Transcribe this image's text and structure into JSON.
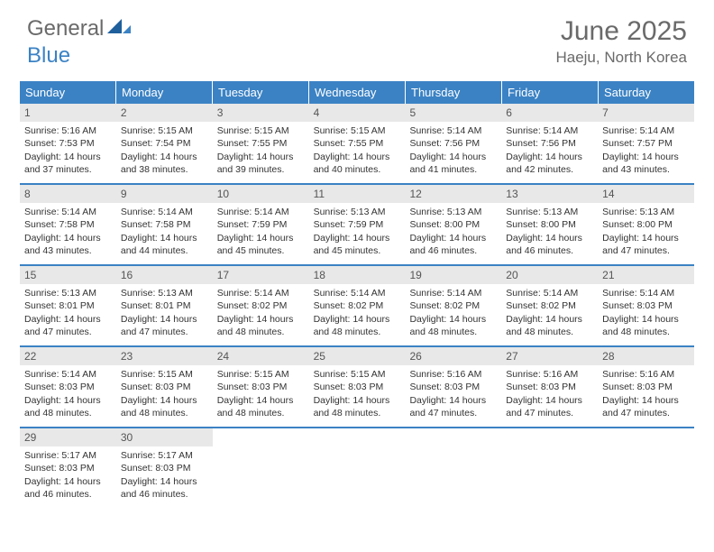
{
  "logo": {
    "part1": "General",
    "part2": "Blue"
  },
  "title": "June 2025",
  "location": "Haeju, North Korea",
  "colors": {
    "header_bg": "#3b82c4",
    "header_text": "#ffffff",
    "daynum_bg": "#e8e8e8",
    "text": "#333333",
    "muted": "#6a6a6a"
  },
  "day_names": [
    "Sunday",
    "Monday",
    "Tuesday",
    "Wednesday",
    "Thursday",
    "Friday",
    "Saturday"
  ],
  "weeks": [
    [
      {
        "n": "1",
        "sr": "Sunrise: 5:16 AM",
        "ss": "Sunset: 7:53 PM",
        "d1": "Daylight: 14 hours",
        "d2": "and 37 minutes."
      },
      {
        "n": "2",
        "sr": "Sunrise: 5:15 AM",
        "ss": "Sunset: 7:54 PM",
        "d1": "Daylight: 14 hours",
        "d2": "and 38 minutes."
      },
      {
        "n": "3",
        "sr": "Sunrise: 5:15 AM",
        "ss": "Sunset: 7:55 PM",
        "d1": "Daylight: 14 hours",
        "d2": "and 39 minutes."
      },
      {
        "n": "4",
        "sr": "Sunrise: 5:15 AM",
        "ss": "Sunset: 7:55 PM",
        "d1": "Daylight: 14 hours",
        "d2": "and 40 minutes."
      },
      {
        "n": "5",
        "sr": "Sunrise: 5:14 AM",
        "ss": "Sunset: 7:56 PM",
        "d1": "Daylight: 14 hours",
        "d2": "and 41 minutes."
      },
      {
        "n": "6",
        "sr": "Sunrise: 5:14 AM",
        "ss": "Sunset: 7:56 PM",
        "d1": "Daylight: 14 hours",
        "d2": "and 42 minutes."
      },
      {
        "n": "7",
        "sr": "Sunrise: 5:14 AM",
        "ss": "Sunset: 7:57 PM",
        "d1": "Daylight: 14 hours",
        "d2": "and 43 minutes."
      }
    ],
    [
      {
        "n": "8",
        "sr": "Sunrise: 5:14 AM",
        "ss": "Sunset: 7:58 PM",
        "d1": "Daylight: 14 hours",
        "d2": "and 43 minutes."
      },
      {
        "n": "9",
        "sr": "Sunrise: 5:14 AM",
        "ss": "Sunset: 7:58 PM",
        "d1": "Daylight: 14 hours",
        "d2": "and 44 minutes."
      },
      {
        "n": "10",
        "sr": "Sunrise: 5:14 AM",
        "ss": "Sunset: 7:59 PM",
        "d1": "Daylight: 14 hours",
        "d2": "and 45 minutes."
      },
      {
        "n": "11",
        "sr": "Sunrise: 5:13 AM",
        "ss": "Sunset: 7:59 PM",
        "d1": "Daylight: 14 hours",
        "d2": "and 45 minutes."
      },
      {
        "n": "12",
        "sr": "Sunrise: 5:13 AM",
        "ss": "Sunset: 8:00 PM",
        "d1": "Daylight: 14 hours",
        "d2": "and 46 minutes."
      },
      {
        "n": "13",
        "sr": "Sunrise: 5:13 AM",
        "ss": "Sunset: 8:00 PM",
        "d1": "Daylight: 14 hours",
        "d2": "and 46 minutes."
      },
      {
        "n": "14",
        "sr": "Sunrise: 5:13 AM",
        "ss": "Sunset: 8:00 PM",
        "d1": "Daylight: 14 hours",
        "d2": "and 47 minutes."
      }
    ],
    [
      {
        "n": "15",
        "sr": "Sunrise: 5:13 AM",
        "ss": "Sunset: 8:01 PM",
        "d1": "Daylight: 14 hours",
        "d2": "and 47 minutes."
      },
      {
        "n": "16",
        "sr": "Sunrise: 5:13 AM",
        "ss": "Sunset: 8:01 PM",
        "d1": "Daylight: 14 hours",
        "d2": "and 47 minutes."
      },
      {
        "n": "17",
        "sr": "Sunrise: 5:14 AM",
        "ss": "Sunset: 8:02 PM",
        "d1": "Daylight: 14 hours",
        "d2": "and 48 minutes."
      },
      {
        "n": "18",
        "sr": "Sunrise: 5:14 AM",
        "ss": "Sunset: 8:02 PM",
        "d1": "Daylight: 14 hours",
        "d2": "and 48 minutes."
      },
      {
        "n": "19",
        "sr": "Sunrise: 5:14 AM",
        "ss": "Sunset: 8:02 PM",
        "d1": "Daylight: 14 hours",
        "d2": "and 48 minutes."
      },
      {
        "n": "20",
        "sr": "Sunrise: 5:14 AM",
        "ss": "Sunset: 8:02 PM",
        "d1": "Daylight: 14 hours",
        "d2": "and 48 minutes."
      },
      {
        "n": "21",
        "sr": "Sunrise: 5:14 AM",
        "ss": "Sunset: 8:03 PM",
        "d1": "Daylight: 14 hours",
        "d2": "and 48 minutes."
      }
    ],
    [
      {
        "n": "22",
        "sr": "Sunrise: 5:14 AM",
        "ss": "Sunset: 8:03 PM",
        "d1": "Daylight: 14 hours",
        "d2": "and 48 minutes."
      },
      {
        "n": "23",
        "sr": "Sunrise: 5:15 AM",
        "ss": "Sunset: 8:03 PM",
        "d1": "Daylight: 14 hours",
        "d2": "and 48 minutes."
      },
      {
        "n": "24",
        "sr": "Sunrise: 5:15 AM",
        "ss": "Sunset: 8:03 PM",
        "d1": "Daylight: 14 hours",
        "d2": "and 48 minutes."
      },
      {
        "n": "25",
        "sr": "Sunrise: 5:15 AM",
        "ss": "Sunset: 8:03 PM",
        "d1": "Daylight: 14 hours",
        "d2": "and 48 minutes."
      },
      {
        "n": "26",
        "sr": "Sunrise: 5:16 AM",
        "ss": "Sunset: 8:03 PM",
        "d1": "Daylight: 14 hours",
        "d2": "and 47 minutes."
      },
      {
        "n": "27",
        "sr": "Sunrise: 5:16 AM",
        "ss": "Sunset: 8:03 PM",
        "d1": "Daylight: 14 hours",
        "d2": "and 47 minutes."
      },
      {
        "n": "28",
        "sr": "Sunrise: 5:16 AM",
        "ss": "Sunset: 8:03 PM",
        "d1": "Daylight: 14 hours",
        "d2": "and 47 minutes."
      }
    ],
    [
      {
        "n": "29",
        "sr": "Sunrise: 5:17 AM",
        "ss": "Sunset: 8:03 PM",
        "d1": "Daylight: 14 hours",
        "d2": "and 46 minutes."
      },
      {
        "n": "30",
        "sr": "Sunrise: 5:17 AM",
        "ss": "Sunset: 8:03 PM",
        "d1": "Daylight: 14 hours",
        "d2": "and 46 minutes."
      },
      null,
      null,
      null,
      null,
      null
    ]
  ]
}
